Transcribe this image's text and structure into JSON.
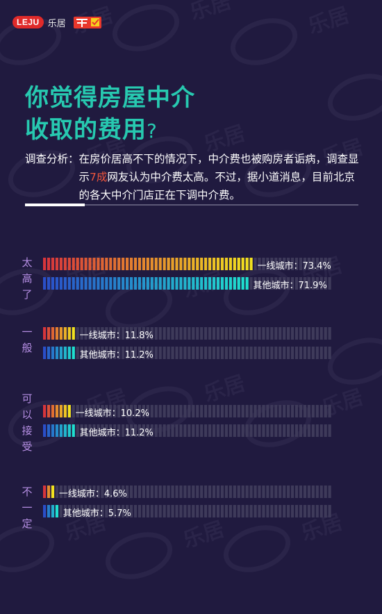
{
  "header": {
    "logo_text": "LEJU",
    "brand_cn": "乐居"
  },
  "colors": {
    "background": "#201a3f",
    "title": "#27c9b0",
    "group_label": "#b58ee3",
    "highlight": "#f0563c",
    "tier1_gradient": [
      "#d8353c",
      "#f2e21f"
    ],
    "other_gradient": [
      "#2a4fc9",
      "#1fe0cf"
    ],
    "track": "#3e3a5a"
  },
  "title": {
    "line1": "你觉得房屋中介",
    "line2": "收取的费用",
    "q": "?"
  },
  "analysis": {
    "label": "调查分析：",
    "text_before": "在房价居高不下的情况下，中介费也被购房者诟病，调查显示",
    "highlight": "7成",
    "text_after": "网友认为中介费太高。不过，据小道消息，目前北京的各大中介门店正在下调中介费。"
  },
  "chart_data": {
    "type": "bar",
    "orientation": "horizontal",
    "unit": "%",
    "xlim": [
      0,
      100
    ],
    "categories": [
      "太高了",
      "一般",
      "可以接受",
      "不一定"
    ],
    "series": [
      {
        "name": "一线城市",
        "values": [
          73.4,
          11.8,
          10.2,
          4.6
        ],
        "labels": [
          "一线城市：73.4%",
          "一线城市：11.8%",
          "一线城市：10.2%",
          "一线城市：4.6%"
        ]
      },
      {
        "name": "其他城市",
        "values": [
          71.9,
          11.2,
          11.2,
          5.7
        ],
        "labels": [
          "其他城市：71.9%",
          "其他城市：11.2%",
          "其他城市：11.2%",
          "其他城市：5.7%"
        ]
      }
    ]
  }
}
